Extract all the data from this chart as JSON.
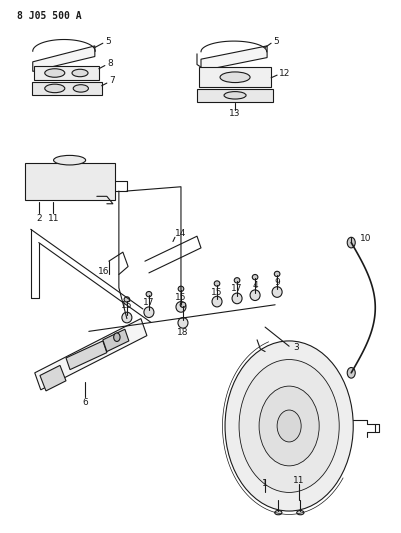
{
  "title": "8 J05 500 A",
  "bg_color": "#ffffff",
  "line_color": "#1a1a1a",
  "fig_width": 4.02,
  "fig_height": 5.33,
  "dpi": 100
}
